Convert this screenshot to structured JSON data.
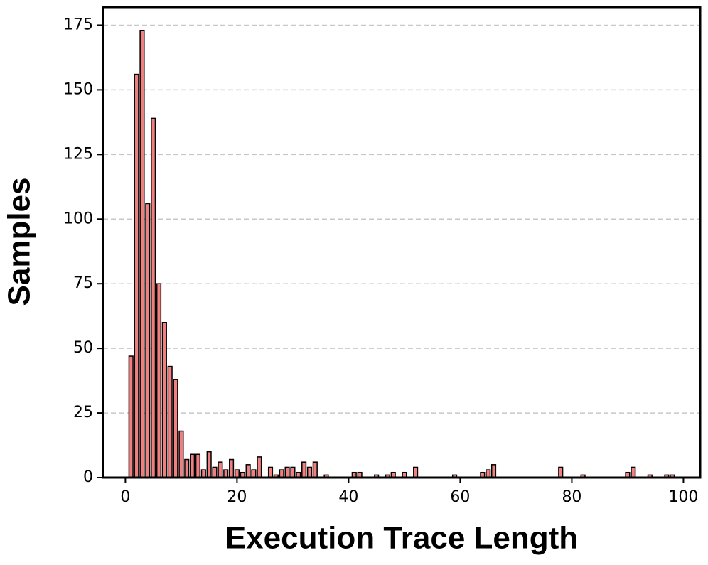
{
  "chart_data": {
    "type": "bar",
    "x_label": "Execution Trace Length",
    "y_label": "Samples",
    "x": [
      1,
      2,
      3,
      4,
      5,
      6,
      7,
      8,
      9,
      10,
      11,
      12,
      13,
      14,
      15,
      16,
      17,
      18,
      19,
      20,
      21,
      22,
      23,
      24,
      26,
      27,
      28,
      29,
      30,
      31,
      32,
      33,
      34,
      36,
      41,
      42,
      45,
      47,
      48,
      50,
      52,
      59,
      64,
      65,
      66,
      78,
      82,
      90,
      91,
      94,
      97,
      98
    ],
    "values": [
      47,
      156,
      173,
      106,
      139,
      75,
      60,
      43,
      38,
      18,
      7,
      9,
      9,
      3,
      10,
      4,
      6,
      3,
      7,
      3,
      2,
      5,
      3,
      8,
      4,
      1,
      3,
      4,
      4,
      2,
      6,
      4,
      6,
      1,
      2,
      2,
      1,
      1,
      2,
      2,
      4,
      1,
      2,
      3,
      5,
      4,
      1,
      2,
      4,
      1,
      1,
      1
    ],
    "color": "#f08080",
    "xlim": [
      -4,
      103
    ],
    "ylim": [
      0,
      182
    ],
    "xticks": [
      0,
      20,
      40,
      60,
      80,
      100
    ],
    "yticks": [
      0,
      25,
      50,
      75,
      100,
      125,
      150,
      175
    ],
    "grid": true
  }
}
